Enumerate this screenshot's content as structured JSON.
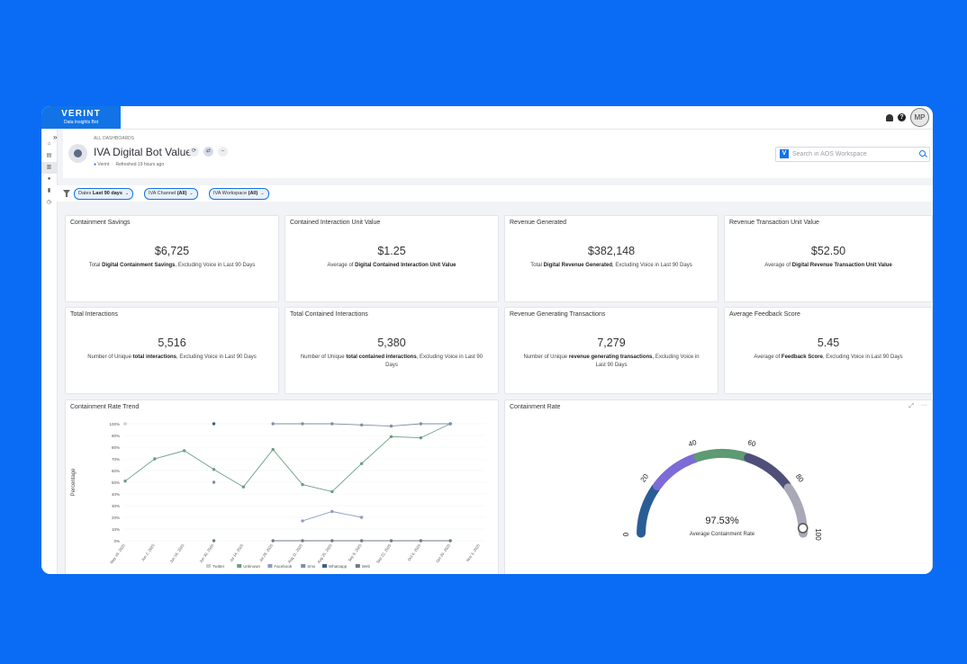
{
  "topbar": {
    "brand": "VERINT",
    "subtitle": "Data Insights Bot",
    "help": "?",
    "avatar": "MP",
    "icons": [
      "bell-icon",
      "help-icon"
    ]
  },
  "nav": {
    "expand": "»",
    "items": [
      "⌂",
      "▤",
      "▥",
      "●",
      "▮",
      "◷"
    ]
  },
  "header": {
    "crumb": "ALL DASHBOARDS",
    "title": "IVA Digital Bot Value",
    "owner": "Verint",
    "refreshed": "Refreshed 19 hours ago",
    "search_placeholder": "Search in AOS Workspace",
    "search_badge": "V"
  },
  "filters": [
    {
      "label": "Dates ",
      "value": "Last 90 days"
    },
    {
      "label": "IVA Channel ",
      "value": "(All)"
    },
    {
      "label": "IVA Workspace ",
      "value": "(All)"
    }
  ],
  "kpis": [
    {
      "title": "Containment Savings",
      "value": "$6,725",
      "pre": "Total ",
      "bold": "Digital Containment Savings",
      "post": ", Excluding Voice in Last 90 Days"
    },
    {
      "title": "Contained Interaction Unit Value",
      "value": "$1.25",
      "pre": "Average of ",
      "bold": "Digital Contained Interaction Unit Value",
      "post": ""
    },
    {
      "title": "Revenue Generated",
      "value": "$382,148",
      "pre": "Total ",
      "bold": "Digital Revenue Generated",
      "post": ", Excluding Voice in Last 90 Days"
    },
    {
      "title": "Revenue Transaction Unit Value",
      "value": "$52.50",
      "pre": "Average of ",
      "bold": "Digital Revenue Transaction Unit Value",
      "post": ""
    },
    {
      "title": "Total Interactions",
      "value": "5,516",
      "pre": "Number of Unique ",
      "bold": "total interactions",
      "post": ", Excluding Voice in Last 90 Days"
    },
    {
      "title": "Total Contained Interactions",
      "value": "5,380",
      "pre": "Number of Unique ",
      "bold": "total contained interactions",
      "post": ", Excluding Voice in Last 90 Days"
    },
    {
      "title": "Revenue Generating Transactions",
      "value": "7,279",
      "pre": "Number of Unique ",
      "bold": "revenue generating transactions",
      "post": ", Excluding Voice in Last 90 Days"
    },
    {
      "title": "Average Feedback Score",
      "value": "5.45",
      "pre": "Average of ",
      "bold": "Feedback Score",
      "post": ", Excluding Voice in Last 90 Days"
    }
  ],
  "trend_panel": {
    "title": "Containment Rate Trend"
  },
  "gauge_panel": {
    "title": "Containment Rate",
    "value_text": "97.53%",
    "label": "Average Containment Rate",
    "ticks": [
      "0",
      "20",
      "40",
      "60",
      "80",
      "100"
    ],
    "menu": "···"
  },
  "chart_data": [
    {
      "type": "line",
      "title": "Containment Rate Trend",
      "ylabel": "Percentage",
      "ylim": [
        0,
        100
      ],
      "yticks": [
        "0%",
        "10%",
        "20%",
        "30%",
        "40%",
        "50%",
        "60%",
        "70%",
        "80%",
        "90%",
        "100%"
      ],
      "categories": [
        "May 19, 2025",
        "Jun 2, 2025",
        "Jun 16, 2025",
        "Jun 30, 2025",
        "Jul 14, 2025",
        "Jul 28, 2025",
        "Aug 11, 2025",
        "Aug 25, 2025",
        "Sep 8, 2025",
        "Sep 22, 2025",
        "Oct 6, 2025",
        "Oct 20, 2025",
        "Nov 3, 2025"
      ],
      "series": [
        {
          "name": "Twitter",
          "color": "#c9ccd2",
          "values": [
            100,
            null,
            null,
            null,
            null,
            null,
            null,
            null,
            null,
            null,
            null,
            null,
            null
          ]
        },
        {
          "name": "Unknown",
          "color": "#6a9e84",
          "values": [
            51,
            70,
            77,
            61,
            46,
            78,
            48,
            42,
            66,
            89,
            88,
            100,
            null
          ]
        },
        {
          "name": "Facebook",
          "color": "#8e9cc4",
          "values": [
            null,
            null,
            null,
            null,
            null,
            null,
            17,
            25,
            20,
            null,
            null,
            null,
            null
          ]
        },
        {
          "name": "Sms",
          "color": "#7e8ea6",
          "values": [
            null,
            null,
            null,
            50,
            null,
            100,
            100,
            100,
            99,
            98,
            100,
            100,
            null
          ]
        },
        {
          "name": "Whatsapp",
          "color": "#3d5f86",
          "values": [
            null,
            null,
            null,
            100,
            null,
            null,
            null,
            null,
            null,
            null,
            null,
            null,
            null
          ]
        },
        {
          "name": "Web",
          "color": "#707a88",
          "values": [
            null,
            null,
            null,
            0,
            null,
            0,
            0,
            0,
            0,
            0,
            0,
            0,
            null
          ]
        }
      ]
    },
    {
      "type": "gauge",
      "title": "Containment Rate",
      "value": 97.53,
      "range": [
        0,
        100
      ],
      "bands": [
        {
          "from": 0,
          "to": 20,
          "color": "#2b5d95"
        },
        {
          "from": 20,
          "to": 40,
          "color": "#7d6bd6"
        },
        {
          "from": 40,
          "to": 60,
          "color": "#5e9a73"
        },
        {
          "from": 60,
          "to": 80,
          "color": "#4f4f7a"
        },
        {
          "from": 80,
          "to": 100,
          "color": "#a9a8b7"
        }
      ]
    }
  ]
}
